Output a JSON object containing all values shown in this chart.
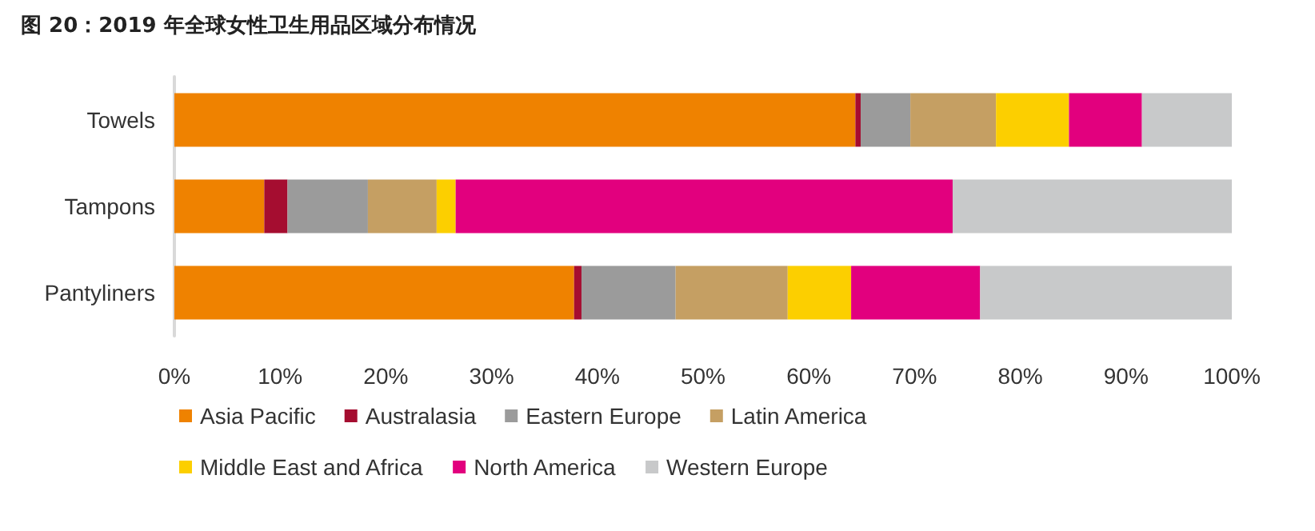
{
  "chart_data": {
    "type": "bar",
    "orientation": "horizontal",
    "stacked": true,
    "title": "图 20：2019 年全球女性卫生用品区域分布情况",
    "categories": [
      "Towels",
      "Tampons",
      "Pantyliners"
    ],
    "series": [
      {
        "name": "Asia Pacific",
        "color": "#ef8200",
        "values": [
          64.4,
          8.5,
          37.8
        ]
      },
      {
        "name": "Australasia",
        "color": "#a50d30",
        "values": [
          0.5,
          2.2,
          0.7
        ]
      },
      {
        "name": "Eastern Europe",
        "color": "#9b9b9b",
        "values": [
          4.7,
          7.6,
          8.9
        ]
      },
      {
        "name": "Latin America",
        "color": "#c59f63",
        "values": [
          8.1,
          6.5,
          10.6
        ]
      },
      {
        "name": "Middle East and Africa",
        "color": "#fccf00",
        "values": [
          6.9,
          1.8,
          6.0
        ]
      },
      {
        "name": "North America",
        "color": "#e2007e",
        "values": [
          6.9,
          47.0,
          12.2
        ]
      },
      {
        "name": "Western Europe",
        "color": "#c8c9ca",
        "values": [
          8.5,
          26.4,
          23.8
        ]
      }
    ],
    "xlim": [
      0,
      100
    ],
    "xticks": [
      {
        "value": 0,
        "label": "0%"
      },
      {
        "value": 10,
        "label": "10%"
      },
      {
        "value": 20,
        "label": "20%"
      },
      {
        "value": 30,
        "label": "30%"
      },
      {
        "value": 40,
        "label": "40%"
      },
      {
        "value": 50,
        "label": "50%"
      },
      {
        "value": 60,
        "label": "60%"
      },
      {
        "value": 70,
        "label": "70%"
      },
      {
        "value": 80,
        "label": "80%"
      },
      {
        "value": 90,
        "label": "90%"
      },
      {
        "value": 100,
        "label": "100%"
      }
    ],
    "grid": false,
    "legend": "bottom"
  }
}
